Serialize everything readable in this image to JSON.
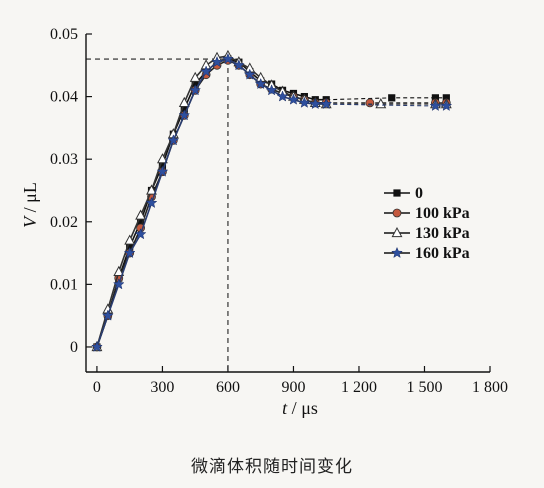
{
  "caption": "微滴体积随时间变化",
  "chart_data": {
    "type": "line",
    "xlabel_var": "t",
    "xlabel_unit": "μs",
    "ylabel_var": "V",
    "ylabel_unit": "μL",
    "xlim": [
      -50,
      1800
    ],
    "ylim": [
      -0.004,
      0.05
    ],
    "xticks": [
      0,
      300,
      600,
      900,
      1200,
      1500,
      1800
    ],
    "xtick_labels": [
      "0",
      "300",
      "600",
      "900",
      "1 200",
      "1 500",
      "1 800"
    ],
    "yticks": [
      0,
      0.01,
      0.02,
      0.03,
      0.04,
      0.05
    ],
    "ytick_labels": [
      "0",
      "0.01",
      "0.02",
      "0.03",
      "0.04",
      "0.05"
    ],
    "legend_position": "right",
    "grid": false,
    "reference_lines": [
      {
        "type": "h",
        "value": 0.046
      },
      {
        "type": "v",
        "value": 600
      }
    ],
    "series": [
      {
        "name": "0",
        "marker": "square",
        "x": [
          0,
          50,
          100,
          150,
          200,
          250,
          300,
          350,
          400,
          450,
          500,
          550,
          600,
          650,
          700,
          750,
          800,
          850,
          900,
          950,
          1000,
          1050,
          1350,
          1550,
          1600
        ],
        "y": [
          0,
          0.005,
          0.011,
          0.016,
          0.02,
          0.025,
          0.029,
          0.034,
          0.038,
          0.042,
          0.044,
          0.0455,
          0.046,
          0.0455,
          0.044,
          0.0425,
          0.042,
          0.041,
          0.0405,
          0.04,
          0.0395,
          0.0395,
          0.0398,
          0.0398,
          0.0398
        ]
      },
      {
        "name": "100 kPa",
        "marker": "circle",
        "x": [
          0,
          50,
          100,
          150,
          200,
          250,
          300,
          350,
          400,
          450,
          500,
          550,
          600,
          650,
          700,
          750,
          800,
          850,
          900,
          950,
          1000,
          1050,
          1250,
          1550,
          1600
        ],
        "y": [
          0,
          0.005,
          0.011,
          0.015,
          0.019,
          0.024,
          0.028,
          0.033,
          0.037,
          0.041,
          0.0435,
          0.045,
          0.0458,
          0.045,
          0.0435,
          0.042,
          0.0412,
          0.0405,
          0.04,
          0.0395,
          0.039,
          0.039,
          0.039,
          0.039,
          0.039
        ]
      },
      {
        "name": "130 kPa",
        "marker": "triangle",
        "x": [
          0,
          50,
          100,
          150,
          200,
          250,
          300,
          350,
          400,
          450,
          500,
          550,
          600,
          650,
          700,
          750,
          800,
          850,
          900,
          950,
          1000,
          1050,
          1300,
          1550,
          1600
        ],
        "y": [
          0,
          0.006,
          0.012,
          0.017,
          0.021,
          0.025,
          0.03,
          0.034,
          0.039,
          0.043,
          0.045,
          0.0462,
          0.0465,
          0.0455,
          0.0445,
          0.043,
          0.0418,
          0.0408,
          0.04,
          0.0395,
          0.039,
          0.0388,
          0.0388,
          0.0388,
          0.0388
        ]
      },
      {
        "name": "160 kPa",
        "marker": "star",
        "x": [
          0,
          50,
          100,
          150,
          200,
          250,
          300,
          350,
          400,
          450,
          500,
          550,
          600,
          650,
          700,
          750,
          800,
          850,
          900,
          950,
          1000,
          1050,
          1550,
          1600
        ],
        "y": [
          0,
          0.005,
          0.01,
          0.015,
          0.018,
          0.023,
          0.028,
          0.033,
          0.037,
          0.041,
          0.044,
          0.0455,
          0.046,
          0.045,
          0.0435,
          0.042,
          0.041,
          0.04,
          0.0395,
          0.039,
          0.0388,
          0.0388,
          0.0385,
          0.0385
        ]
      }
    ]
  }
}
